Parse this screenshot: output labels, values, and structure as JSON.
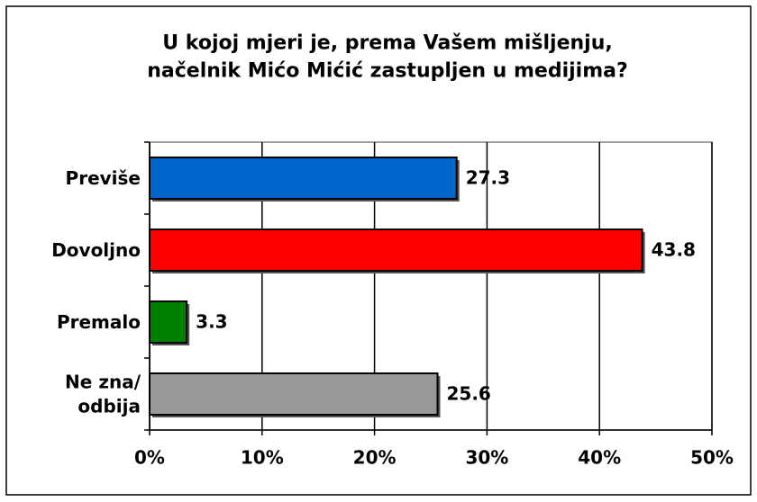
{
  "chart_data": {
    "type": "barh",
    "title": "U kojoj mjeri je,  prema Vašem mišljenju,\nnačelnik Mićo Mićić zastupljen u medijima?",
    "categories": [
      "Previše",
      "Dovoljno",
      "Premalo",
      "Ne zna/\nodbija"
    ],
    "values": [
      27.3,
      43.8,
      3.3,
      25.6
    ],
    "colors": [
      "#0066cc",
      "#ff0000",
      "#008000",
      "#999999"
    ],
    "xlim": [
      0,
      50
    ],
    "xticks": [
      {
        "value": 0,
        "label": "0%"
      },
      {
        "value": 10,
        "label": "10%"
      },
      {
        "value": 20,
        "label": "20%"
      },
      {
        "value": 30,
        "label": "30%"
      },
      {
        "value": 40,
        "label": "40%"
      },
      {
        "value": 50,
        "label": "50%"
      }
    ],
    "grid": true
  }
}
